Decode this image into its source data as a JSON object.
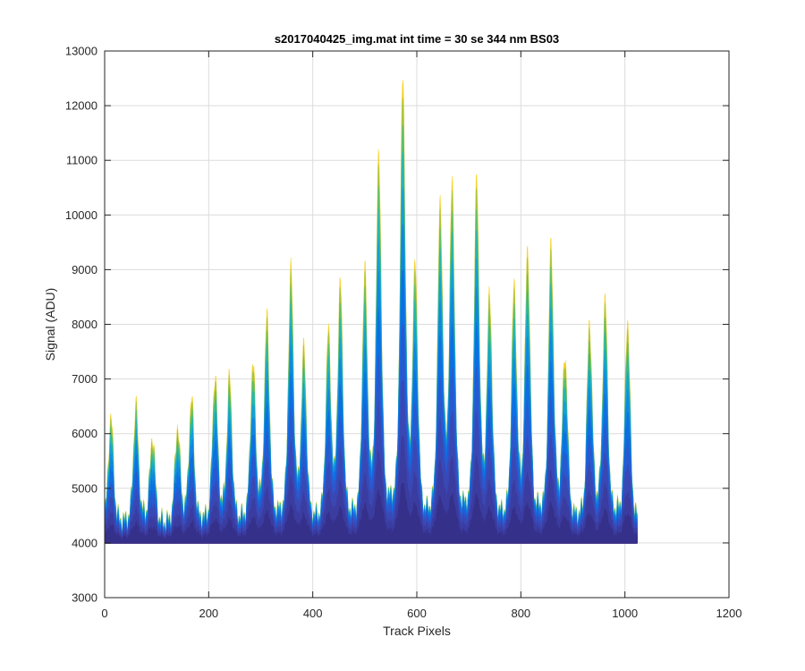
{
  "chart_data": {
    "type": "area",
    "title": "s2017040425_img.mat int time = 30 se  344 nm BS03",
    "xlabel": "Track Pixels",
    "ylabel": "Signal (ADU)",
    "xlim": [
      0,
      1200
    ],
    "ylim": [
      3000,
      13000
    ],
    "x_ticks": [
      0,
      200,
      400,
      600,
      800,
      1000,
      1200
    ],
    "y_ticks": [
      3000,
      4000,
      5000,
      6000,
      7000,
      8000,
      9000,
      10000,
      11000,
      12000,
      13000
    ],
    "grid": true,
    "baseline": 4000,
    "x_extent": [
      0,
      1024
    ],
    "peaks": [
      {
        "x": 12,
        "max": 6050
      },
      {
        "x": 60,
        "max": 6250
      },
      {
        "x": 92,
        "max": 5700
      },
      {
        "x": 140,
        "max": 5850
      },
      {
        "x": 167,
        "max": 6350
      },
      {
        "x": 212,
        "max": 6780
      },
      {
        "x": 240,
        "max": 6700
      },
      {
        "x": 285,
        "max": 6950
      },
      {
        "x": 312,
        "max": 7800
      },
      {
        "x": 358,
        "max": 8650
      },
      {
        "x": 383,
        "max": 7150
      },
      {
        "x": 430,
        "max": 7450
      },
      {
        "x": 453,
        "max": 8350
      },
      {
        "x": 500,
        "max": 8560
      },
      {
        "x": 527,
        "max": 10750
      },
      {
        "x": 573,
        "max": 12050
      },
      {
        "x": 597,
        "max": 8550
      },
      {
        "x": 645,
        "max": 9700
      },
      {
        "x": 668,
        "max": 10100
      },
      {
        "x": 715,
        "max": 10250
      },
      {
        "x": 740,
        "max": 8100
      },
      {
        "x": 787,
        "max": 8300
      },
      {
        "x": 813,
        "max": 9000
      },
      {
        "x": 858,
        "max": 9100
      },
      {
        "x": 885,
        "max": 7100
      },
      {
        "x": 932,
        "max": 7750
      },
      {
        "x": 962,
        "max": 8100
      },
      {
        "x": 1005,
        "max": 7850
      }
    ],
    "layers": [
      {
        "fraction": 1.0,
        "color": "#f5d227"
      },
      {
        "fraction": 0.96,
        "color": "#a9c43a"
      },
      {
        "fraction": 0.9,
        "color": "#5cbf6b"
      },
      {
        "fraction": 0.84,
        "color": "#24b8b0"
      },
      {
        "fraction": 0.76,
        "color": "#14a0d8"
      },
      {
        "fraction": 0.68,
        "color": "#1186e0"
      },
      {
        "fraction": 0.58,
        "color": "#0f6ee2"
      },
      {
        "fraction": 0.46,
        "color": "#2a58cf"
      },
      {
        "fraction": 0.34,
        "color": "#3a48b4"
      },
      {
        "fraction": 0.22,
        "color": "#3b3ca0"
      },
      {
        "fraction": 0.12,
        "color": "#35308a"
      }
    ]
  }
}
